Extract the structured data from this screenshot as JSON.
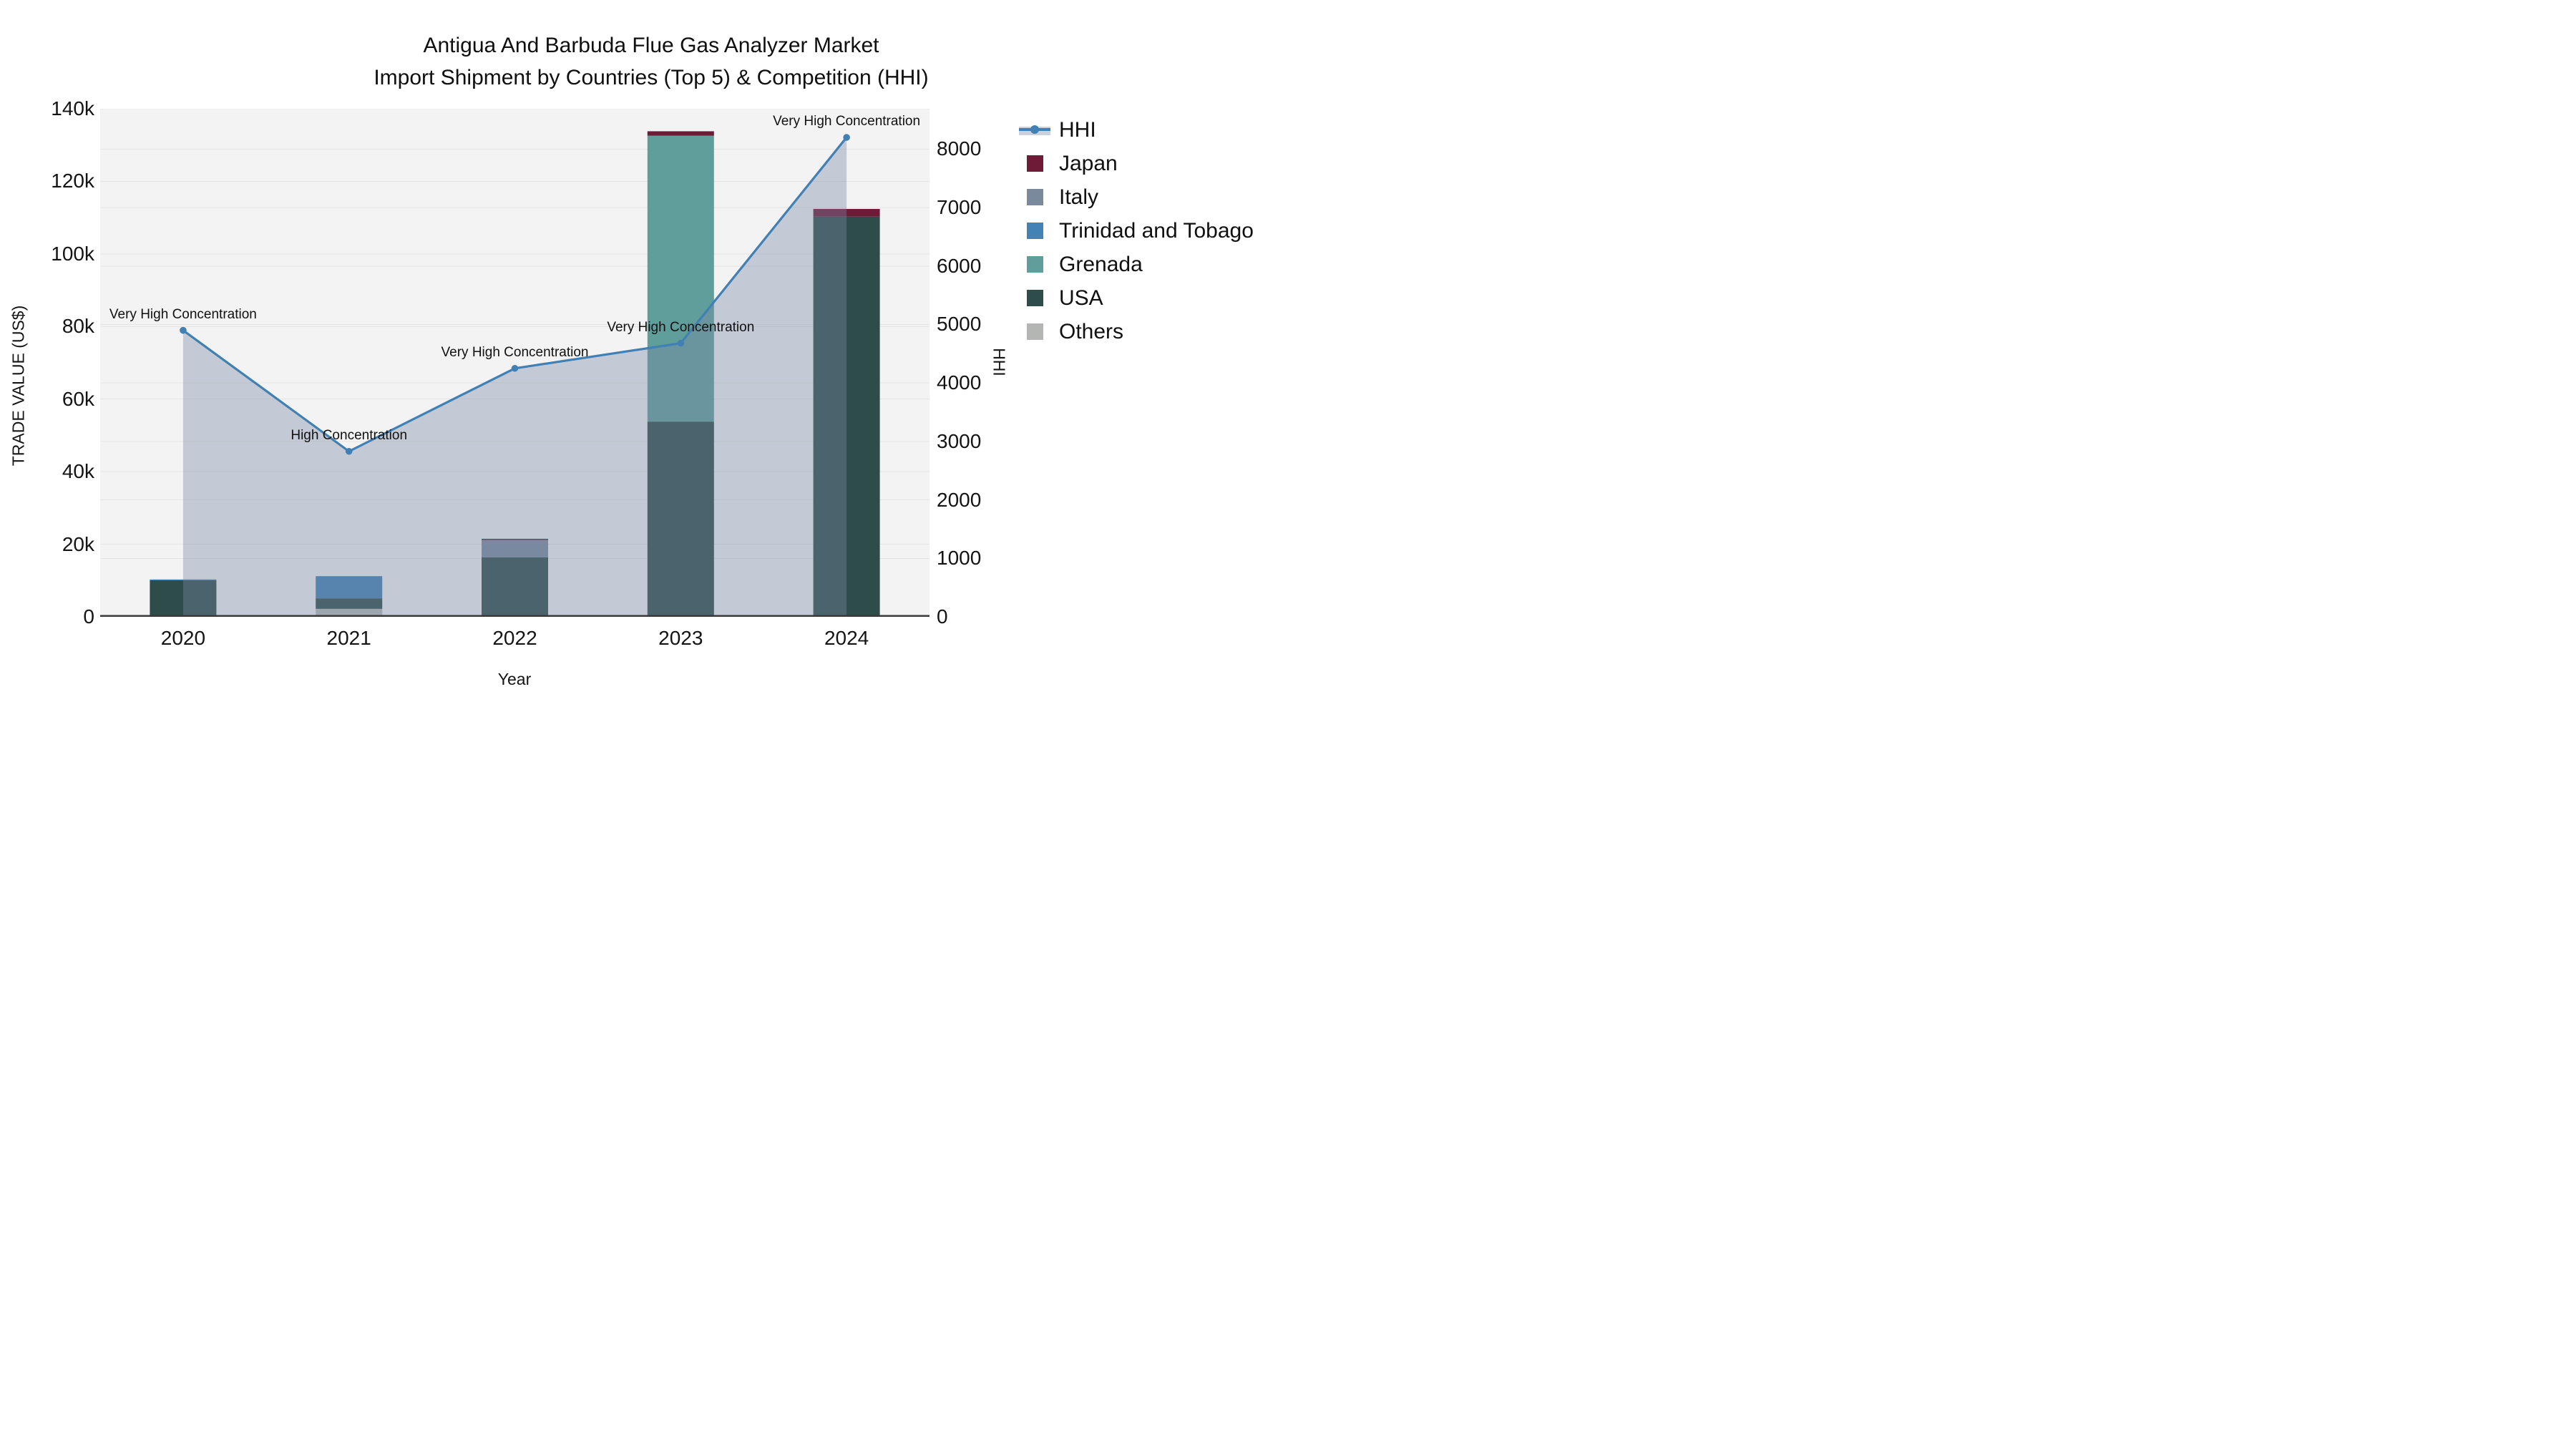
{
  "title": {
    "line1": "Antigua And Barbuda Flue Gas Analyzer Market",
    "line2": "Import Shipment by Countries (Top 5) & Competition (HHI)"
  },
  "axes": {
    "x": {
      "title": "Year",
      "categories": [
        "2020",
        "2021",
        "2022",
        "2023",
        "2024"
      ]
    },
    "y_left": {
      "title": "TRADE VALUE (US$)",
      "tick_labels": [
        "0",
        "20k",
        "40k",
        "60k",
        "80k",
        "100k",
        "120k",
        "140k"
      ],
      "tick_values": [
        0,
        20000,
        40000,
        60000,
        80000,
        100000,
        120000,
        140000
      ],
      "range": [
        0,
        140000
      ]
    },
    "y_right": {
      "title": "HHI",
      "tick_labels": [
        "0",
        "1000",
        "2000",
        "3000",
        "4000",
        "5000",
        "6000",
        "7000",
        "8000"
      ],
      "tick_values": [
        0,
        1000,
        2000,
        3000,
        4000,
        5000,
        6000,
        7000,
        8000
      ],
      "range": [
        0,
        8690
      ]
    }
  },
  "legend": {
    "items": [
      {
        "label": "HHI",
        "type": "line",
        "color": "#4080b4",
        "band_color": "rgba(122,138,165,0.38)"
      },
      {
        "label": "Japan",
        "type": "swatch",
        "color": "#6e1b38"
      },
      {
        "label": "Italy",
        "type": "swatch",
        "color": "#7a8a9c"
      },
      {
        "label": "Trinidad and Tobago",
        "type": "swatch",
        "color": "#4382b4"
      },
      {
        "label": "Grenada",
        "type": "swatch",
        "color": "#5f9e9a"
      },
      {
        "label": "USA",
        "type": "swatch",
        "color": "#2e4c49"
      },
      {
        "label": "Others",
        "type": "swatch",
        "color": "#b4b6b4"
      }
    ]
  },
  "chart_data": {
    "type": "bar+line",
    "subtype": "stacked bars (left axis, US$) with HHI line + area fill (right axis)",
    "categories": [
      "2020",
      "2021",
      "2022",
      "2023",
      "2024"
    ],
    "bar_series": [
      {
        "name": "Others",
        "color": "#b4b6b4",
        "values": [
          0,
          2200,
          0,
          0,
          0
        ]
      },
      {
        "name": "USA",
        "color": "#2e4c49",
        "values": [
          10100,
          2900,
          16400,
          53800,
          110300
        ]
      },
      {
        "name": "Grenada",
        "color": "#5f9e9a",
        "values": [
          0,
          0,
          0,
          78800,
          0
        ]
      },
      {
        "name": "Trinidad and Tobago",
        "color": "#4382b4",
        "values": [
          200,
          6100,
          0,
          0,
          0
        ]
      },
      {
        "name": "Italy",
        "color": "#7a8a9c",
        "values": [
          0,
          0,
          4800,
          0,
          0
        ]
      },
      {
        "name": "Japan",
        "color": "#6e1b38",
        "values": [
          0,
          0,
          300,
          1200,
          2100
        ]
      }
    ],
    "bar_totals": [
      10300,
      11200,
      21500,
      133800,
      112400
    ],
    "line_series": {
      "name": "HHI",
      "color": "#4080b4",
      "fill_color": "rgba(122,138,165,0.38)",
      "values": [
        4900,
        2830,
        4250,
        4680,
        8200
      ]
    },
    "annotations": [
      {
        "x": "2020",
        "text": "Very High Concentration"
      },
      {
        "x": "2021",
        "text": "High Concentration"
      },
      {
        "x": "2022",
        "text": "Very High Concentration"
      },
      {
        "x": "2023",
        "text": "Very High Concentration"
      },
      {
        "x": "2024",
        "text": "Very High Concentration"
      }
    ],
    "ylabel_left": "TRADE VALUE (US$)",
    "ylabel_right": "HHI",
    "xlabel": "Year",
    "grid": "horizontal gridlines for both axes",
    "legend_position": "right"
  },
  "colors": {
    "page_bg": "#ffffff",
    "plot_bg": "#f3f3f3",
    "grid": "#e4e4e4",
    "axis_line": "#3a3a3a",
    "text": "#101010"
  }
}
